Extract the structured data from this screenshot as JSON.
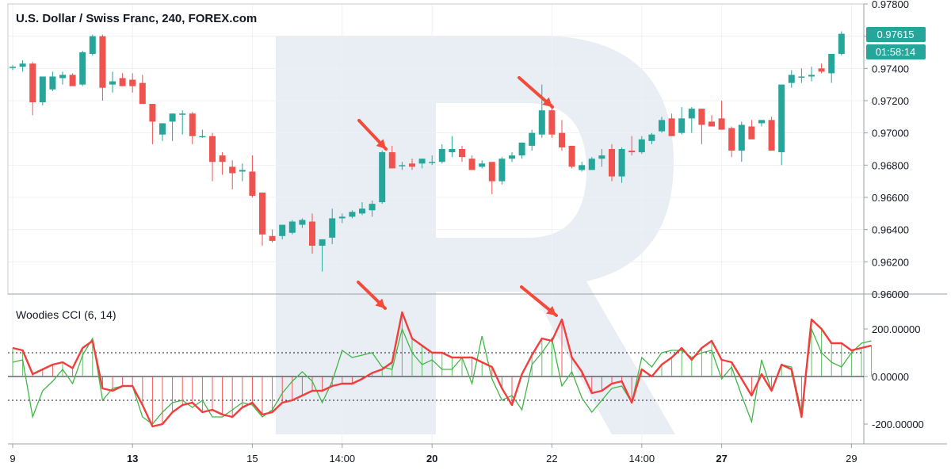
{
  "colors": {
    "up": "#26a69a",
    "down": "#ef5350",
    "cci": "#f23d3d",
    "turbo": "#43b649",
    "arrow": "#f44a3a",
    "price_tag": "#26a69a",
    "watermark": "#e9eef4",
    "grid": "#eef1f4",
    "axis": "#9aa0a6"
  },
  "main": {
    "title": "U.S. Dollar / Swiss Franc, 240, FOREX.com",
    "price_label": "0.97615",
    "countdown_label": "01:58:14"
  },
  "indicator": {
    "title": "Woodies CCI (6, 14)"
  },
  "chart_data": [
    {
      "type": "candlestick",
      "title": "U.S. Dollar / Swiss Franc, 240, FOREX.com",
      "ylim": [
        0.96,
        0.978
      ],
      "y_ticks": [
        "0.97800",
        "0.97600",
        "0.97400",
        "0.97200",
        "0.97000",
        "0.96800",
        "0.96600",
        "0.96400",
        "0.96200",
        "0.96000"
      ],
      "x_ticks": [
        "9",
        "13",
        "15",
        "14:00",
        "20",
        "22",
        "14:00",
        "27",
        "29"
      ],
      "x_ticks_bold": [
        false,
        true,
        false,
        false,
        true,
        false,
        false,
        true,
        false
      ],
      "last_price": 0.97615,
      "candles": [
        [
          0.9741,
          0.9742,
          0.9739,
          0.9741
        ],
        [
          0.9741,
          0.9745,
          0.9738,
          0.9743
        ],
        [
          0.9743,
          0.9744,
          0.9711,
          0.9719
        ],
        [
          0.9719,
          0.9735,
          0.9717,
          0.9735
        ],
        [
          0.9727,
          0.9738,
          0.9726,
          0.9735
        ],
        [
          0.9734,
          0.9738,
          0.973,
          0.9736
        ],
        [
          0.9736,
          0.9737,
          0.973,
          0.9729
        ],
        [
          0.973,
          0.9751,
          0.9729,
          0.975
        ],
        [
          0.9749,
          0.9761,
          0.9748,
          0.976
        ],
        [
          0.976,
          0.9761,
          0.972,
          0.9728
        ],
        [
          0.973,
          0.9738,
          0.9725,
          0.9732
        ],
        [
          0.9734,
          0.9737,
          0.9729,
          0.9729
        ],
        [
          0.9733,
          0.9737,
          0.9725,
          0.9729
        ],
        [
          0.9731,
          0.9736,
          0.9718,
          0.9718
        ],
        [
          0.9718,
          0.9718,
          0.9693,
          0.9707
        ],
        [
          0.9699,
          0.9706,
          0.9695,
          0.9706
        ],
        [
          0.9707,
          0.9712,
          0.9695,
          0.9712
        ],
        [
          0.9712,
          0.9714,
          0.9699,
          0.9712
        ],
        [
          0.9712,
          0.9713,
          0.9693,
          0.9698
        ],
        [
          0.9698,
          0.9702,
          0.9697,
          0.9698
        ],
        [
          0.9698,
          0.97,
          0.967,
          0.9682
        ],
        [
          0.9686,
          0.9688,
          0.9674,
          0.9682
        ],
        [
          0.9679,
          0.9683,
          0.9665,
          0.9675
        ],
        [
          0.9676,
          0.9681,
          0.967,
          0.9677
        ],
        [
          0.9676,
          0.9686,
          0.966,
          0.9661
        ],
        [
          0.9663,
          0.9663,
          0.963,
          0.9637
        ],
        [
          0.9636,
          0.964,
          0.9632,
          0.9633
        ],
        [
          0.9636,
          0.9643,
          0.9634,
          0.9643
        ],
        [
          0.9638,
          0.9646,
          0.9637,
          0.9645
        ],
        [
          0.9643,
          0.9647,
          0.9641,
          0.9646
        ],
        [
          0.9645,
          0.965,
          0.9625,
          0.963
        ],
        [
          0.963,
          0.9634,
          0.9614,
          0.9634
        ],
        [
          0.9635,
          0.9653,
          0.9631,
          0.9647
        ],
        [
          0.9647,
          0.965,
          0.9644,
          0.9648
        ],
        [
          0.9648,
          0.9652,
          0.9647,
          0.9651
        ],
        [
          0.965,
          0.9657,
          0.9649,
          0.9653
        ],
        [
          0.9652,
          0.9658,
          0.9648,
          0.9656
        ],
        [
          0.9657,
          0.9689,
          0.9656,
          0.9688
        ],
        [
          0.9688,
          0.9692,
          0.9678,
          0.9678
        ],
        [
          0.968,
          0.9682,
          0.9677,
          0.968
        ],
        [
          0.9681,
          0.9684,
          0.9677,
          0.9679
        ],
        [
          0.9681,
          0.9684,
          0.9678,
          0.9684
        ],
        [
          0.9682,
          0.9686,
          0.968,
          0.9682
        ],
        [
          0.9682,
          0.9693,
          0.9681,
          0.969
        ],
        [
          0.9688,
          0.9698,
          0.9685,
          0.969
        ],
        [
          0.969,
          0.9692,
          0.9682,
          0.9685
        ],
        [
          0.9684,
          0.9686,
          0.9678,
          0.9677
        ],
        [
          0.9679,
          0.9683,
          0.9678,
          0.9681
        ],
        [
          0.9682,
          0.9682,
          0.9662,
          0.967
        ],
        [
          0.967,
          0.9685,
          0.9668,
          0.9684
        ],
        [
          0.9684,
          0.9688,
          0.9682,
          0.9686
        ],
        [
          0.9686,
          0.9694,
          0.9684,
          0.9694
        ],
        [
          0.9692,
          0.9702,
          0.9689,
          0.97
        ],
        [
          0.9699,
          0.973,
          0.9697,
          0.9714
        ],
        [
          0.9714,
          0.9718,
          0.9697,
          0.9699
        ],
        [
          0.97,
          0.9708,
          0.9689,
          0.9691
        ],
        [
          0.9692,
          0.9692,
          0.9678,
          0.9679
        ],
        [
          0.9677,
          0.9682,
          0.9676,
          0.968
        ],
        [
          0.9677,
          0.9685,
          0.9677,
          0.9684
        ],
        [
          0.9684,
          0.969,
          0.9679,
          0.9686
        ],
        [
          0.969,
          0.9693,
          0.967,
          0.9673
        ],
        [
          0.9673,
          0.9691,
          0.9669,
          0.969
        ],
        [
          0.9689,
          0.9698,
          0.9686,
          0.9688
        ],
        [
          0.9688,
          0.9698,
          0.9687,
          0.9696
        ],
        [
          0.9695,
          0.97,
          0.9693,
          0.9699
        ],
        [
          0.9701,
          0.971,
          0.97,
          0.9708
        ],
        [
          0.9709,
          0.9712,
          0.9698,
          0.9698
        ],
        [
          0.97,
          0.9716,
          0.9699,
          0.9709
        ],
        [
          0.9709,
          0.9716,
          0.97,
          0.9715
        ],
        [
          0.9715,
          0.9715,
          0.9693,
          0.9705
        ],
        [
          0.9707,
          0.9711,
          0.9704,
          0.9704
        ],
        [
          0.9709,
          0.972,
          0.9702,
          0.9702
        ],
        [
          0.9703,
          0.9704,
          0.9685,
          0.9689
        ],
        [
          0.9689,
          0.9707,
          0.9682,
          0.9705
        ],
        [
          0.9704,
          0.9708,
          0.9697,
          0.9696
        ],
        [
          0.9706,
          0.9708,
          0.9704,
          0.9708
        ],
        [
          0.9708,
          0.971,
          0.9689,
          0.9689
        ],
        [
          0.9688,
          0.973,
          0.968,
          0.973
        ],
        [
          0.9731,
          0.9739,
          0.9728,
          0.9736
        ],
        [
          0.9735,
          0.974,
          0.9731,
          0.9735
        ],
        [
          0.9735,
          0.9741,
          0.9732,
          0.9736
        ],
        [
          0.974,
          0.9743,
          0.9737,
          0.9738
        ],
        [
          0.9737,
          0.9749,
          0.9731,
          0.9749
        ],
        [
          0.9749,
          0.9763,
          0.9748,
          0.97615
        ]
      ]
    },
    {
      "type": "line",
      "title": "Woodies CCI (6, 14)",
      "ylim": [
        -300,
        300
      ],
      "y_ticks": [
        "200.00000",
        "0.00000",
        "-200.00000"
      ],
      "levels": [
        100,
        0,
        -100
      ],
      "series": [
        {
          "values": [
            120,
            110,
            10,
            30,
            50,
            60,
            35,
            120,
            150,
            -50,
            -60,
            -40,
            -40,
            -120,
            -210,
            -200,
            -150,
            -120,
            -110,
            -150,
            -140,
            -160,
            -170,
            -130,
            -110,
            -160,
            -150,
            -110,
            -100,
            -80,
            -60,
            -60,
            -40,
            -30,
            -30,
            -10,
            15,
            30,
            60,
            270,
            160,
            130,
            100,
            100,
            80,
            80,
            80,
            60,
            40,
            -50,
            -120,
            10,
            90,
            160,
            150,
            240,
            80,
            20,
            -70,
            -60,
            -30,
            -20,
            -110,
            30,
            0,
            50,
            80,
            120,
            70,
            120,
            150,
            70,
            60,
            -10,
            -80,
            10,
            -60,
            50,
            30,
            -170,
            240,
            200,
            140,
            140,
            110,
            120,
            130
          ]
        },
        {
          "values": [
            60,
            70,
            -170,
            -60,
            -20,
            30,
            -30,
            90,
            160,
            -100,
            -50,
            -40,
            -40,
            -170,
            -200,
            -150,
            -110,
            -100,
            -130,
            -100,
            -170,
            -170,
            -140,
            -110,
            -120,
            -170,
            -140,
            -70,
            -20,
            20,
            -20,
            -110,
            -20,
            110,
            80,
            90,
            100,
            40,
            30,
            200,
            100,
            50,
            70,
            30,
            30,
            80,
            -30,
            170,
            -10,
            -100,
            -80,
            -140,
            50,
            100,
            160,
            -40,
            20,
            -90,
            -150,
            -100,
            -50,
            -40,
            -110,
            80,
            40,
            100,
            110,
            110,
            80,
            100,
            110,
            -10,
            40,
            -80,
            -190,
            70,
            -60,
            50,
            40,
            -150,
            200,
            100,
            60,
            40,
            100,
            140,
            150
          ]
        }
      ]
    }
  ]
}
